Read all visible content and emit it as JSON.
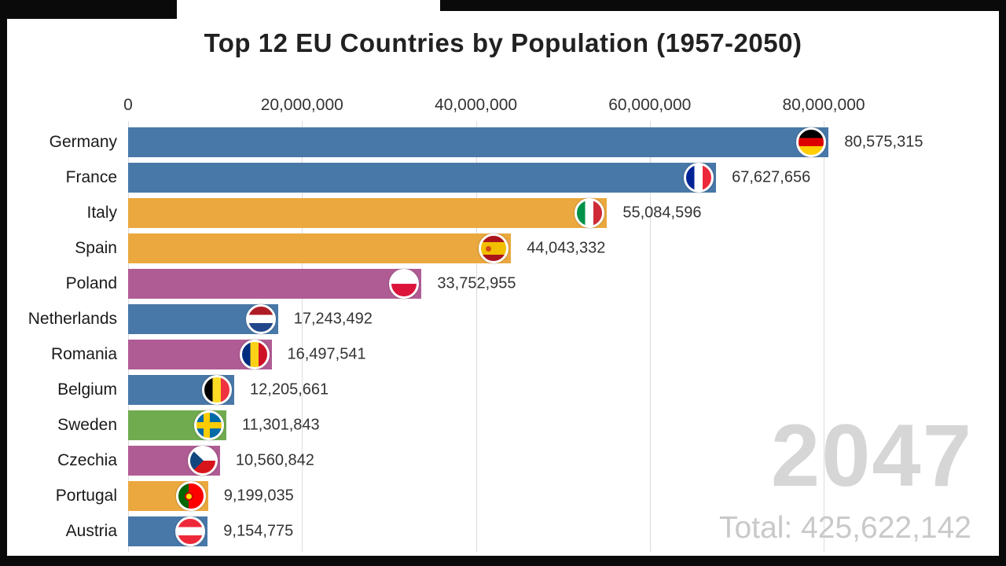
{
  "chart_data": {
    "type": "bar",
    "orientation": "horizontal",
    "title": "Top 12 EU Countries by Population (1957-2050)",
    "year": "2047",
    "total_label": "Total:",
    "total_value": "425,622,142",
    "legend": "none",
    "grid": "vertical",
    "x_axis": {
      "max": 80000000,
      "ticks": [
        0,
        20000000,
        40000000,
        60000000,
        80000000
      ],
      "tick_labels": [
        "0",
        "20,000,000",
        "40,000,000",
        "60,000,000",
        "80,000,000"
      ]
    },
    "palette": {
      "blue": "#4878a8",
      "orange": "#eaa83e",
      "purple": "#b05c94",
      "green": "#71ab50"
    },
    "bars": [
      {
        "label": "Germany",
        "value": 80575315,
        "value_label": "80,575,315",
        "color": "#4878a8",
        "flag": "de"
      },
      {
        "label": "France",
        "value": 67627656,
        "value_label": "67,627,656",
        "color": "#4878a8",
        "flag": "fr"
      },
      {
        "label": "Italy",
        "value": 55084596,
        "value_label": "55,084,596",
        "color": "#eaa83e",
        "flag": "it"
      },
      {
        "label": "Spain",
        "value": 44043332,
        "value_label": "44,043,332",
        "color": "#eaa83e",
        "flag": "es"
      },
      {
        "label": "Poland",
        "value": 33752955,
        "value_label": "33,752,955",
        "color": "#b05c94",
        "flag": "pl"
      },
      {
        "label": "Netherlands",
        "value": 17243492,
        "value_label": "17,243,492",
        "color": "#4878a8",
        "flag": "nl"
      },
      {
        "label": "Romania",
        "value": 16497541,
        "value_label": "16,497,541",
        "color": "#b05c94",
        "flag": "ro"
      },
      {
        "label": "Belgium",
        "value": 12205661,
        "value_label": "12,205,661",
        "color": "#4878a8",
        "flag": "be"
      },
      {
        "label": "Sweden",
        "value": 11301843,
        "value_label": "11,301,843",
        "color": "#71ab50",
        "flag": "se"
      },
      {
        "label": "Czechia",
        "value": 10560842,
        "value_label": "10,560,842",
        "color": "#b05c94",
        "flag": "cz"
      },
      {
        "label": "Portugal",
        "value": 9199035,
        "value_label": "9,199,035",
        "color": "#eaa83e",
        "flag": "pt"
      },
      {
        "label": "Austria",
        "value": 9154775,
        "value_label": "9,154,775",
        "color": "#4878a8",
        "flag": "at"
      }
    ]
  }
}
